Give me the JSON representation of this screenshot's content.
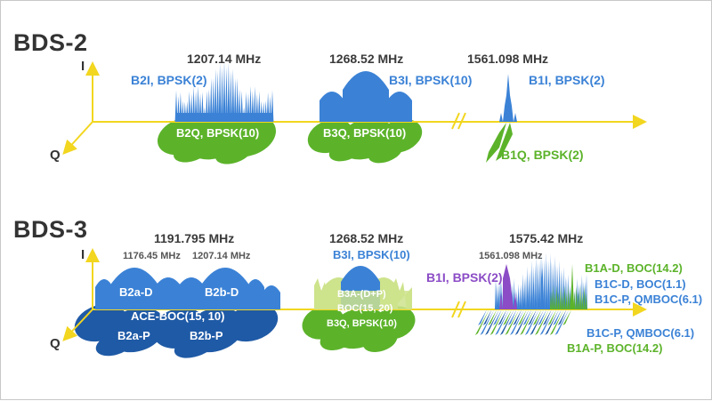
{
  "colors": {
    "axis": "#f2d61f",
    "in_phase_blue": "#3b82d6",
    "quadrature_green": "#5cb32a",
    "dark_blue": "#1f5aa6",
    "purple": "#8b4cc6",
    "light_green": "#cde38c"
  },
  "bds2": {
    "title": "BDS-2",
    "axis_i": "I",
    "axis_q": "Q",
    "freq_1": "1207.14 MHz",
    "freq_2": "1268.52 MHz",
    "freq_3": "1561.098 MHz",
    "b2i": "B2I, BPSK(2)",
    "b2q": "B2Q, BPSK(10)",
    "b3i": "B3I, BPSK(10)",
    "b3q": "B3Q, BPSK(10)",
    "b1i": "B1I, BPSK(2)",
    "b1q": "B1Q, BPSK(2)"
  },
  "bds3": {
    "title": "BDS-3",
    "axis_i": "I",
    "axis_q": "Q",
    "freq_1": "1191.795 MHz",
    "freq_1a": "1176.45 MHz",
    "freq_1b": "1207.14 MHz",
    "freq_2": "1268.52 MHz",
    "freq_3": "1575.42 MHz",
    "freq_3a": "1561.098 MHz",
    "b2a_d": "B2a-D",
    "b2b_d": "B2b-D",
    "ace_boc": "ACE-BOC(15, 10)",
    "b2a_p": "B2a-P",
    "b2b_p": "B2b-P",
    "b3i": "B3I, BPSK(10)",
    "b3a_1": "B3A-(D+P)",
    "b3a_2": "BOC(15, 20)",
    "b3q": "B3Q, BPSK(10)",
    "b1i": "B1I, BPSK(2)",
    "b1a_d": "B1A-D, BOC(14.2)",
    "b1c_d": "B1C-D, BOC(1.1)",
    "b1c_p": "B1C-P, QMBOC(6.1)",
    "b1c_p2": "B1C-P, QMBOC(6.1)",
    "b1a_p": "B1A-P, BOC(14.2)"
  }
}
